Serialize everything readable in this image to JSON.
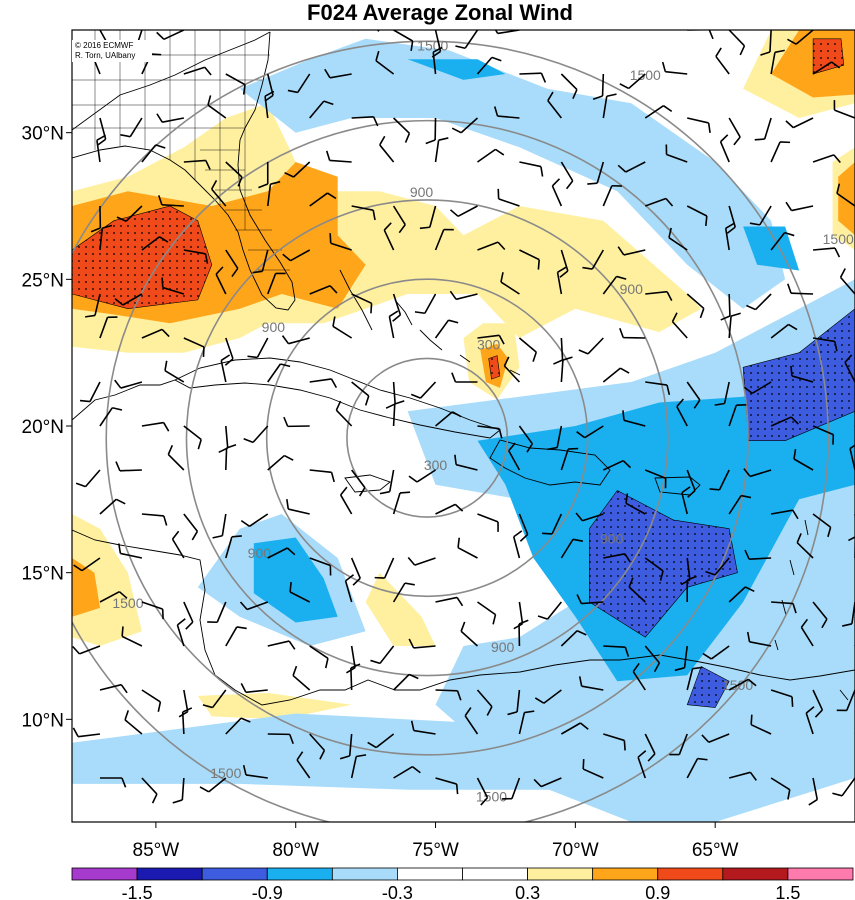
{
  "title": "F024 Average Zonal Wind",
  "credit": {
    "line1": "© 2016 ECMWF",
    "line2": "R. Torn, UAlbany"
  },
  "map": {
    "lon_range": [
      -88,
      -60
    ],
    "lat_range": [
      6.5,
      33.5
    ],
    "lon_ticks": [
      {
        "value": -85,
        "label": "85°W"
      },
      {
        "value": -80,
        "label": "80°W"
      },
      {
        "value": -75,
        "label": "75°W"
      },
      {
        "value": -70,
        "label": "70°W"
      },
      {
        "value": -65,
        "label": "65°W"
      }
    ],
    "lat_ticks": [
      {
        "value": 30,
        "label": "30°N"
      },
      {
        "value": 25,
        "label": "25°N"
      },
      {
        "value": 20,
        "label": "20°N"
      },
      {
        "value": 15,
        "label": "15°N"
      },
      {
        "value": 10,
        "label": "10°N"
      }
    ],
    "range_rings": {
      "center_lon": -75.3,
      "center_lat": 19.6,
      "radius_km": [
        300,
        600,
        900,
        1200,
        1500
      ],
      "labels": [
        {
          "text": "300",
          "lon": -75.0,
          "lat": 18.5
        },
        {
          "text": "300",
          "lon": -73.1,
          "lat": 22.6
        },
        {
          "text": "900",
          "lon": -75.5,
          "lat": 27.8
        },
        {
          "text": "900",
          "lon": -68.0,
          "lat": 24.5
        },
        {
          "text": "900",
          "lon": -80.8,
          "lat": 23.2
        },
        {
          "text": "900",
          "lon": -81.3,
          "lat": 15.5
        },
        {
          "text": "900",
          "lon": -72.6,
          "lat": 12.3
        },
        {
          "text": "900",
          "lon": -68.7,
          "lat": 16.0
        },
        {
          "text": "1500",
          "lon": -75.1,
          "lat": 32.8
        },
        {
          "text": "1500",
          "lon": -67.5,
          "lat": 31.8
        },
        {
          "text": "1500",
          "lon": -60.6,
          "lat": 26.2
        },
        {
          "text": "1500",
          "lon": -86.0,
          "lat": 13.8
        },
        {
          "text": "1500",
          "lon": -82.5,
          "lat": 8.0
        },
        {
          "text": "1500",
          "lon": -73.0,
          "lat": 7.2
        },
        {
          "text": "1500",
          "lon": -64.2,
          "lat": 11.0
        }
      ]
    }
  },
  "colorbar": {
    "colors": [
      "#a63acc",
      "#1a1ab0",
      "#3d5ce0",
      "#1ab0f0",
      "#a8dcfa",
      "#ffffff",
      "#ffffff",
      "#fff0a0",
      "#ffa51a",
      "#f04a1a",
      "#b4191e",
      "#ff7aad"
    ],
    "labels": [
      "-1.5",
      "-0.9",
      "-0.3",
      "0.3",
      "0.9",
      "1.5"
    ]
  },
  "field_blobs": [
    {
      "level": "0.3",
      "pts": [
        [
          -88,
          28
        ],
        [
          -86,
          28.5
        ],
        [
          -84,
          29.5
        ],
        [
          -82.5,
          30.5
        ],
        [
          -81,
          31
        ],
        [
          -79.5,
          28
        ],
        [
          -77,
          28
        ],
        [
          -75,
          27.5
        ],
        [
          -74,
          26.5
        ],
        [
          -72,
          27.5
        ],
        [
          -69,
          27
        ],
        [
          -66,
          24.5
        ],
        [
          -65.5,
          24
        ],
        [
          -67,
          23.2
        ],
        [
          -70,
          24
        ],
        [
          -72,
          23
        ],
        [
          -73.5,
          24.5
        ],
        [
          -76,
          24.5
        ],
        [
          -79,
          23.5
        ],
        [
          -81,
          23.5
        ],
        [
          -82,
          23
        ],
        [
          -84,
          22.5
        ],
        [
          -86,
          22.5
        ],
        [
          -88,
          22.7
        ]
      ]
    },
    {
      "level": "0.9",
      "pts": [
        [
          -88,
          27.5
        ],
        [
          -86,
          28
        ],
        [
          -83,
          27.5
        ],
        [
          -81,
          28
        ],
        [
          -80,
          29
        ],
        [
          -78.5,
          28.5
        ],
        [
          -78.5,
          26.5
        ],
        [
          -77.5,
          25.5
        ],
        [
          -78.5,
          24
        ],
        [
          -80.5,
          24.5
        ],
        [
          -82,
          24
        ],
        [
          -84.5,
          23.5
        ],
        [
          -86.5,
          23.8
        ],
        [
          -88,
          24
        ]
      ]
    },
    {
      "level": "1.5",
      "pts": [
        [
          -88,
          26
        ],
        [
          -86.5,
          27
        ],
        [
          -84.5,
          27.5
        ],
        [
          -83.5,
          27
        ],
        [
          -83,
          25.5
        ],
        [
          -83.5,
          24.3
        ],
        [
          -86,
          24
        ],
        [
          -88,
          24.5
        ]
      ]
    },
    {
      "level": "0.3",
      "pts": [
        [
          -63,
          33.5
        ],
        [
          -60,
          33.5
        ],
        [
          -60,
          31
        ],
        [
          -62,
          30.5
        ],
        [
          -64,
          31.5
        ]
      ]
    },
    {
      "level": "0.9",
      "pts": [
        [
          -62,
          33.5
        ],
        [
          -60,
          33.5
        ],
        [
          -60,
          31.3
        ],
        [
          -61.5,
          31.2
        ],
        [
          -63,
          32
        ]
      ]
    },
    {
      "level": "1.5",
      "pts": [
        [
          -61.5,
          33.2
        ],
        [
          -60.5,
          33.2
        ],
        [
          -60.4,
          32.3
        ],
        [
          -61.5,
          32
        ]
      ]
    },
    {
      "level": "0.3",
      "pts": [
        [
          -60.8,
          29
        ],
        [
          -60,
          29.5
        ],
        [
          -60,
          26
        ],
        [
          -60.8,
          26.5
        ]
      ]
    },
    {
      "level": "0.9",
      "pts": [
        [
          -60.6,
          28.5
        ],
        [
          -60,
          29
        ],
        [
          -60,
          26.5
        ],
        [
          -60.6,
          27
        ]
      ]
    },
    {
      "level": "0.3",
      "pts": [
        [
          -74,
          23
        ],
        [
          -73.3,
          23.5
        ],
        [
          -72.2,
          23.5
        ],
        [
          -72,
          22
        ],
        [
          -72.8,
          20.9
        ],
        [
          -73.8,
          21.5
        ]
      ]
    },
    {
      "level": "0.9",
      "pts": [
        [
          -73.4,
          22.6
        ],
        [
          -72.8,
          22.8
        ],
        [
          -72.4,
          22.3
        ],
        [
          -72.7,
          21.3
        ],
        [
          -73.2,
          21.5
        ]
      ]
    },
    {
      "level": "1.5",
      "pts": [
        [
          -73.1,
          22.3
        ],
        [
          -72.8,
          22.4
        ],
        [
          -72.7,
          21.7
        ],
        [
          -73,
          21.6
        ]
      ]
    },
    {
      "level": "0.3",
      "pts": [
        [
          -88,
          17
        ],
        [
          -87,
          16.5
        ],
        [
          -86,
          15
        ],
        [
          -85.5,
          13
        ],
        [
          -87,
          12.5
        ],
        [
          -88,
          12.8
        ]
      ]
    },
    {
      "level": "0.9",
      "pts": [
        [
          -88,
          15.5
        ],
        [
          -87.2,
          15
        ],
        [
          -87,
          13.8
        ],
        [
          -88,
          13.5
        ]
      ]
    },
    {
      "level": "0.3",
      "pts": [
        [
          -77,
          15
        ],
        [
          -75.5,
          13.5
        ],
        [
          -75,
          12.5
        ],
        [
          -76.5,
          12.5
        ],
        [
          -77.5,
          14
        ]
      ]
    },
    {
      "level": "0.3",
      "pts": [
        [
          -83.5,
          10.8
        ],
        [
          -81,
          10.9
        ],
        [
          -78,
          10.5
        ],
        [
          -80.5,
          10.0
        ],
        [
          -83,
          10.1
        ]
      ]
    },
    {
      "level": "-0.3",
      "pts": [
        [
          -82,
          16.5
        ],
        [
          -80.5,
          17
        ],
        [
          -78.5,
          15.5
        ],
        [
          -77.5,
          13
        ],
        [
          -79.5,
          12.5
        ],
        [
          -82,
          13.5
        ],
        [
          -83.5,
          14.5
        ]
      ]
    },
    {
      "level": "-0.9",
      "pts": [
        [
          -81.5,
          16
        ],
        [
          -80,
          16.2
        ],
        [
          -79,
          14.8
        ],
        [
          -78.5,
          13.5
        ],
        [
          -80,
          13.3
        ],
        [
          -81.5,
          14.3
        ]
      ]
    },
    {
      "level": "-0.3",
      "pts": [
        [
          -76,
          20.5
        ],
        [
          -72,
          21
        ],
        [
          -68,
          21.5
        ],
        [
          -65,
          22.5
        ],
        [
          -62,
          24
        ],
        [
          -60,
          25
        ],
        [
          -60,
          8
        ],
        [
          -65,
          6.5
        ],
        [
          -68,
          6.5
        ],
        [
          -72,
          8
        ],
        [
          -75,
          10.5
        ],
        [
          -74,
          12.5
        ],
        [
          -72,
          12.8
        ],
        [
          -70,
          14
        ],
        [
          -72,
          17.5
        ],
        [
          -75,
          18
        ]
      ]
    },
    {
      "level": "-0.9",
      "pts": [
        [
          -73.5,
          19.5
        ],
        [
          -70,
          20
        ],
        [
          -67,
          20.8
        ],
        [
          -64,
          21
        ],
        [
          -61.5,
          22
        ],
        [
          -60,
          23
        ],
        [
          -60,
          18
        ],
        [
          -62,
          17.5
        ],
        [
          -64,
          14
        ],
        [
          -66,
          11.5
        ],
        [
          -68.5,
          11.3
        ],
        [
          -70,
          13.5
        ],
        [
          -71.5,
          15.5
        ],
        [
          -72.5,
          18
        ]
      ]
    },
    {
      "level": "-1.5",
      "pts": [
        [
          -68.5,
          17.8
        ],
        [
          -66.5,
          16.8
        ],
        [
          -64.5,
          16.5
        ],
        [
          -64.2,
          15
        ],
        [
          -66,
          14.5
        ],
        [
          -67.5,
          12.8
        ],
        [
          -69.5,
          14
        ],
        [
          -69.5,
          16.5
        ]
      ]
    },
    {
      "level": "-1.5",
      "pts": [
        [
          -64,
          22
        ],
        [
          -62,
          22.5
        ],
        [
          -60,
          24
        ],
        [
          -60,
          20.5
        ],
        [
          -62.5,
          19.5
        ],
        [
          -63.8,
          19.5
        ]
      ]
    },
    {
      "level": "-1.5",
      "pts": [
        [
          -65.5,
          11.8
        ],
        [
          -64.5,
          11.3
        ],
        [
          -65,
          10.4
        ],
        [
          -66,
          10.5
        ]
      ]
    },
    {
      "level": "-0.3",
      "pts": [
        [
          -82,
          31.5
        ],
        [
          -79.5,
          32.5
        ],
        [
          -77.5,
          33.2
        ],
        [
          -74.5,
          32.8
        ],
        [
          -71,
          31.5
        ],
        [
          -68,
          31
        ],
        [
          -65,
          29
        ],
        [
          -63,
          27
        ],
        [
          -62.5,
          25
        ],
        [
          -64,
          24
        ],
        [
          -66,
          25.5
        ],
        [
          -68.5,
          28
        ],
        [
          -72,
          29.5
        ],
        [
          -75,
          30.5
        ],
        [
          -78,
          30.5
        ],
        [
          -80,
          30
        ]
      ]
    },
    {
      "level": "-0.9",
      "pts": [
        [
          -76,
          32.5
        ],
        [
          -73.5,
          32.5
        ],
        [
          -72.5,
          32
        ],
        [
          -74,
          31.8
        ]
      ]
    },
    {
      "level": "-0.9",
      "pts": [
        [
          -64,
          26.8
        ],
        [
          -62.5,
          26.8
        ],
        [
          -62,
          25.3
        ],
        [
          -63.5,
          25.5
        ]
      ]
    },
    {
      "level": "-0.3",
      "pts": [
        [
          -88,
          9.2
        ],
        [
          -80,
          10.2
        ],
        [
          -72,
          9.8
        ],
        [
          -68,
          9.3
        ],
        [
          -66,
          8.5
        ],
        [
          -70,
          7.6
        ],
        [
          -76,
          7.6
        ],
        [
          -82,
          7.8
        ],
        [
          -88,
          7.8
        ]
      ]
    }
  ],
  "barb_grid": {
    "lon_start": -87,
    "lon_step": 1.5,
    "lat_start": 8,
    "lat_step": 1.5
  }
}
